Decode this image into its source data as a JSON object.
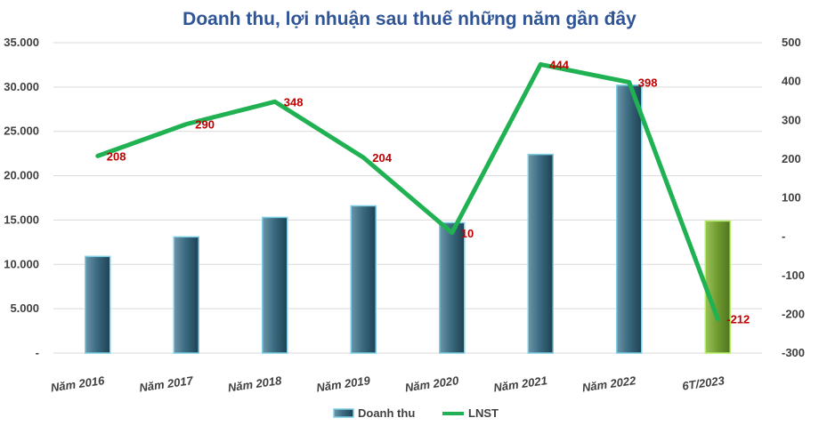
{
  "chart_data": {
    "type": "bar+line",
    "title": "Doanh thu, lợi nhuận sau thuế những năm gần đây",
    "categories": [
      "Năm 2016",
      "Năm 2017",
      "Năm 2018",
      "Năm 2019",
      "Năm 2020",
      "Năm 2021",
      "Năm 2022",
      "6T/2023"
    ],
    "series": [
      {
        "name": "Doanh thu",
        "type": "bar",
        "axis": "left",
        "values": [
          10900,
          13100,
          15300,
          16600,
          14700,
          22400,
          30200,
          14900
        ],
        "color": "#2e5d72",
        "highlight_color": "#70a02e"
      },
      {
        "name": "LNST",
        "type": "line",
        "axis": "right",
        "values": [
          208,
          290,
          348,
          204,
          10,
          444,
          398,
          -212
        ],
        "labels": [
          "208",
          "290",
          "348",
          "204",
          "10",
          "444",
          "398",
          "-212"
        ],
        "color": "#1fb152"
      }
    ],
    "y_left": {
      "range": [
        0,
        35000
      ],
      "ticks": [
        0,
        5000,
        10000,
        15000,
        20000,
        25000,
        30000,
        35000
      ],
      "tick_labels": [
        "-",
        "5.000",
        "10.000",
        "15.000",
        "20.000",
        "25.000",
        "30.000",
        "35.000"
      ]
    },
    "y_right": {
      "range": [
        -300,
        500
      ],
      "ticks": [
        -300,
        -200,
        -100,
        0,
        100,
        200,
        300,
        400,
        500
      ],
      "tick_labels": [
        "-300",
        "-200",
        "-100",
        "-",
        "100",
        "200",
        "300",
        "400",
        "500"
      ]
    },
    "grid": true,
    "legend": "bottom",
    "label_color": "#c00000"
  }
}
